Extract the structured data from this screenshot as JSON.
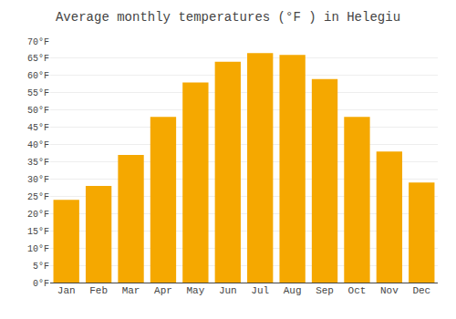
{
  "chart_data": {
    "type": "bar",
    "title": "Average monthly temperatures (°F ) in Helegiu",
    "categories": [
      "Jan",
      "Feb",
      "Mar",
      "Apr",
      "May",
      "Jun",
      "Jul",
      "Aug",
      "Sep",
      "Oct",
      "Nov",
      "Dec"
    ],
    "values": [
      24,
      28,
      37,
      48,
      58,
      64,
      66.5,
      66,
      59,
      48,
      38,
      29
    ],
    "color": "#F5A800",
    "ylim": [
      0,
      70
    ],
    "yticks": [
      {
        "value": 0,
        "label": "0°F"
      },
      {
        "value": 5,
        "label": "5°F"
      },
      {
        "value": 10,
        "label": "10°F"
      },
      {
        "value": 15,
        "label": "15°F"
      },
      {
        "value": 20,
        "label": "20°F"
      },
      {
        "value": 25,
        "label": "25°F"
      },
      {
        "value": 30,
        "label": "30°F"
      },
      {
        "value": 35,
        "label": "35°F"
      },
      {
        "value": 40,
        "label": "40°F"
      },
      {
        "value": 45,
        "label": "45°F"
      },
      {
        "value": 50,
        "label": "50°F"
      },
      {
        "value": 55,
        "label": "55°F"
      },
      {
        "value": 60,
        "label": "60°F"
      },
      {
        "value": 65,
        "label": "65°F"
      },
      {
        "value": 70,
        "label": "70°F"
      }
    ],
    "grid": true
  }
}
